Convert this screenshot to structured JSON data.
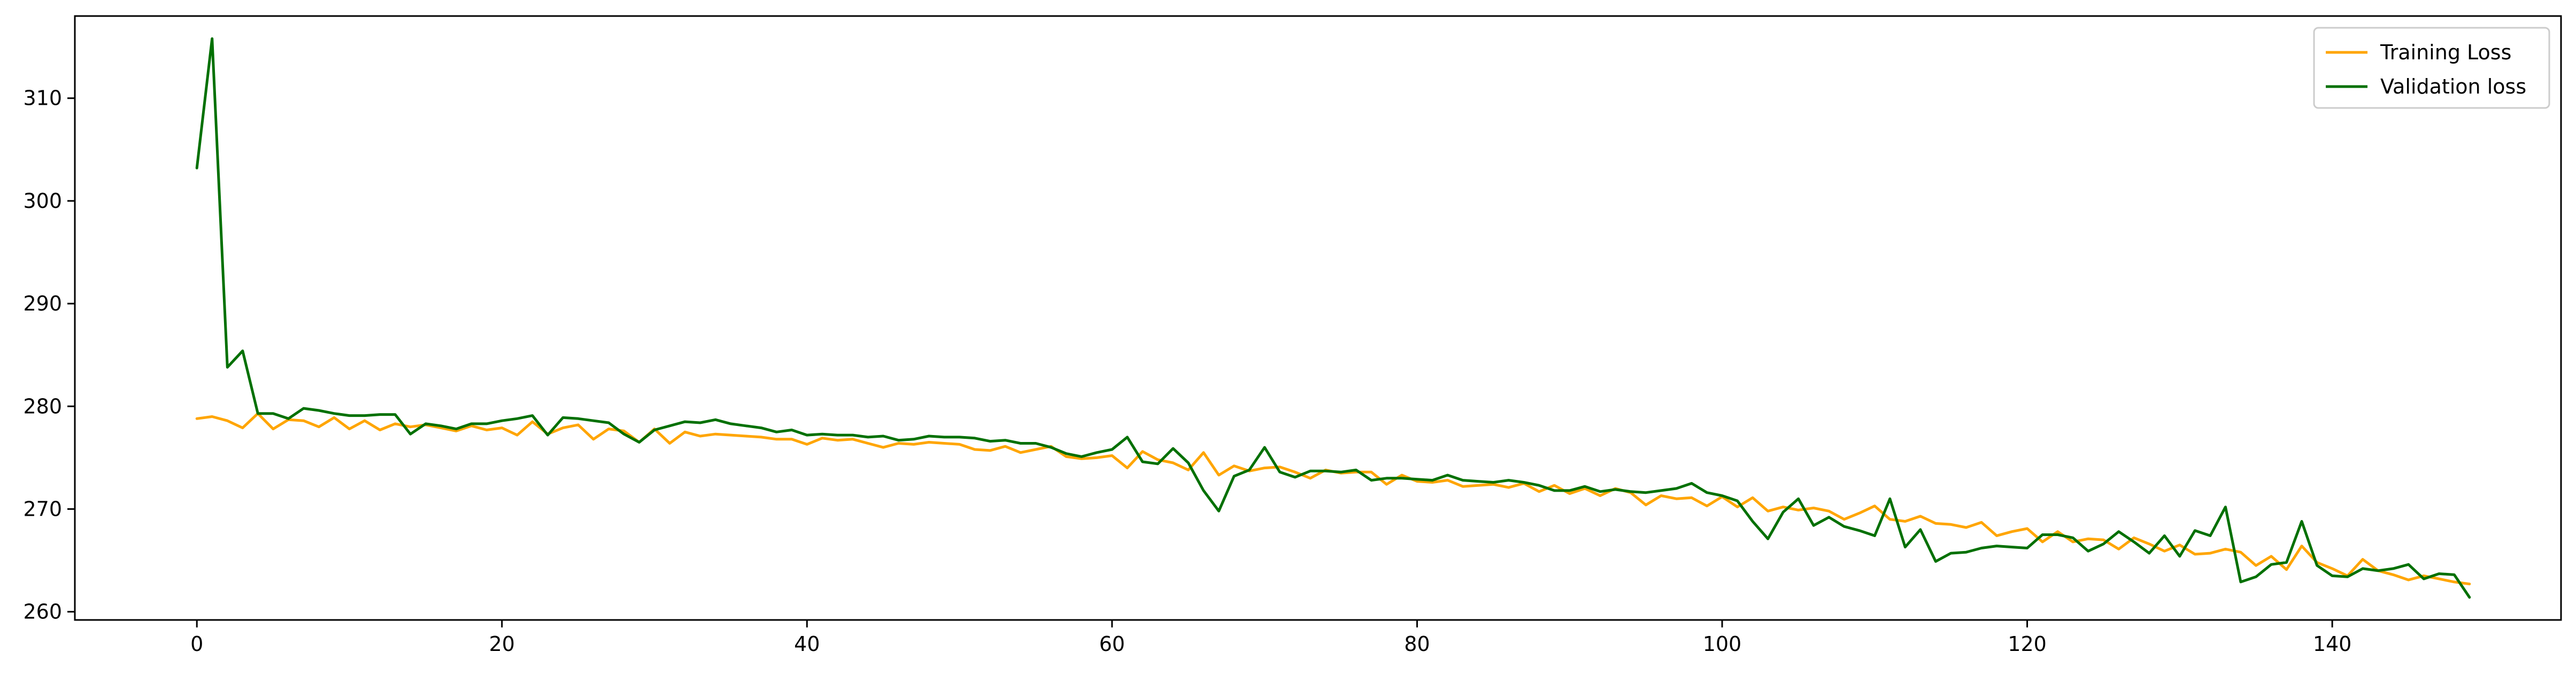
{
  "chart_data": {
    "type": "line",
    "title": "",
    "xlabel": "",
    "ylabel": "",
    "xlim": [
      -8,
      155
    ],
    "ylim": [
      259.2,
      318
    ],
    "x_ticks": [
      0,
      20,
      40,
      60,
      80,
      100,
      120,
      140
    ],
    "y_ticks": [
      260,
      270,
      280,
      290,
      300,
      310
    ],
    "grid": false,
    "legend_position": "top-right",
    "series": [
      {
        "name": "Training Loss",
        "color": "#ffa500",
        "values": [
          278.8,
          279.0,
          278.6,
          277.9,
          279.3,
          277.8,
          278.7,
          278.6,
          278.0,
          278.9,
          277.8,
          278.6,
          277.7,
          278.3,
          278.0,
          278.2,
          277.9,
          277.6,
          278.1,
          277.7,
          277.9,
          277.2,
          278.5,
          277.3,
          277.9,
          278.2,
          276.8,
          277.8,
          277.6,
          276.5,
          277.8,
          276.4,
          277.5,
          277.1,
          277.3,
          277.2,
          277.1,
          277.0,
          276.8,
          276.8,
          276.3,
          276.9,
          276.7,
          276.8,
          276.4,
          276.0,
          276.4,
          276.3,
          276.5,
          276.4,
          276.3,
          275.8,
          275.7,
          276.1,
          275.5,
          275.8,
          276.1,
          275.1,
          274.9,
          275.0,
          275.2,
          274.0,
          275.6,
          274.8,
          274.5,
          273.8,
          275.5,
          273.3,
          274.2,
          273.7,
          274.0,
          274.1,
          273.6,
          273.0,
          273.8,
          273.5,
          273.6,
          273.6,
          272.4,
          273.3,
          272.7,
          272.6,
          272.8,
          272.2,
          272.3,
          272.4,
          272.1,
          272.5,
          271.7,
          272.3,
          271.5,
          272.0,
          271.3,
          272.0,
          271.6,
          270.4,
          271.3,
          271.0,
          271.1,
          270.3,
          271.2,
          270.2,
          271.1,
          269.8,
          270.2,
          269.9,
          270.1,
          269.8,
          269.0,
          269.6,
          270.3,
          269.0,
          268.8,
          269.3,
          268.6,
          268.5,
          268.2,
          268.7,
          267.4,
          267.8,
          268.1,
          266.8,
          267.8,
          266.8,
          267.1,
          267.0,
          266.1,
          267.2,
          266.6,
          265.9,
          266.5,
          265.6,
          265.7,
          266.1,
          265.8,
          264.5,
          265.4,
          264.1,
          266.4,
          264.8,
          264.2,
          263.5,
          265.1,
          264.0,
          263.6,
          263.1,
          263.5,
          263.2,
          262.9,
          262.7
        ]
      },
      {
        "name": "Validation loss",
        "color": "#007000",
        "values": [
          303.2,
          315.8,
          283.8,
          285.4,
          279.3,
          279.3,
          278.8,
          279.8,
          279.6,
          279.3,
          279.1,
          279.1,
          279.2,
          279.2,
          277.3,
          278.3,
          278.1,
          277.8,
          278.3,
          278.3,
          278.6,
          278.8,
          279.1,
          277.2,
          278.9,
          278.8,
          278.6,
          278.4,
          277.3,
          276.5,
          277.7,
          278.1,
          278.5,
          278.4,
          278.7,
          278.3,
          278.1,
          277.9,
          277.5,
          277.7,
          277.2,
          277.3,
          277.2,
          277.2,
          277.0,
          277.1,
          276.7,
          276.8,
          277.1,
          277.0,
          277.0,
          276.9,
          276.6,
          276.7,
          276.4,
          276.4,
          276.0,
          275.4,
          275.1,
          275.5,
          275.8,
          277.0,
          274.6,
          274.4,
          275.9,
          274.5,
          271.8,
          269.8,
          273.2,
          273.8,
          276.0,
          273.6,
          273.1,
          273.7,
          273.7,
          273.6,
          273.8,
          272.8,
          273.0,
          273.0,
          272.9,
          272.8,
          273.3,
          272.8,
          272.7,
          272.6,
          272.8,
          272.6,
          272.3,
          271.8,
          271.8,
          272.2,
          271.7,
          271.9,
          271.7,
          271.6,
          271.8,
          272.0,
          272.5,
          271.6,
          271.3,
          270.8,
          268.8,
          267.1,
          269.7,
          271.0,
          268.4,
          269.2,
          268.3,
          267.9,
          267.4,
          271.0,
          266.3,
          268.0,
          264.9,
          265.7,
          265.8,
          266.2,
          266.4,
          266.3,
          266.2,
          267.5,
          267.5,
          267.2,
          265.9,
          266.6,
          267.8,
          266.8,
          265.7,
          267.4,
          265.4,
          267.9,
          267.4,
          270.2,
          262.9,
          263.4,
          264.6,
          264.8,
          268.8,
          264.5,
          263.5,
          263.4,
          264.2,
          264.0,
          264.2,
          264.6,
          263.2,
          263.7,
          263.6,
          261.4
        ]
      }
    ]
  }
}
